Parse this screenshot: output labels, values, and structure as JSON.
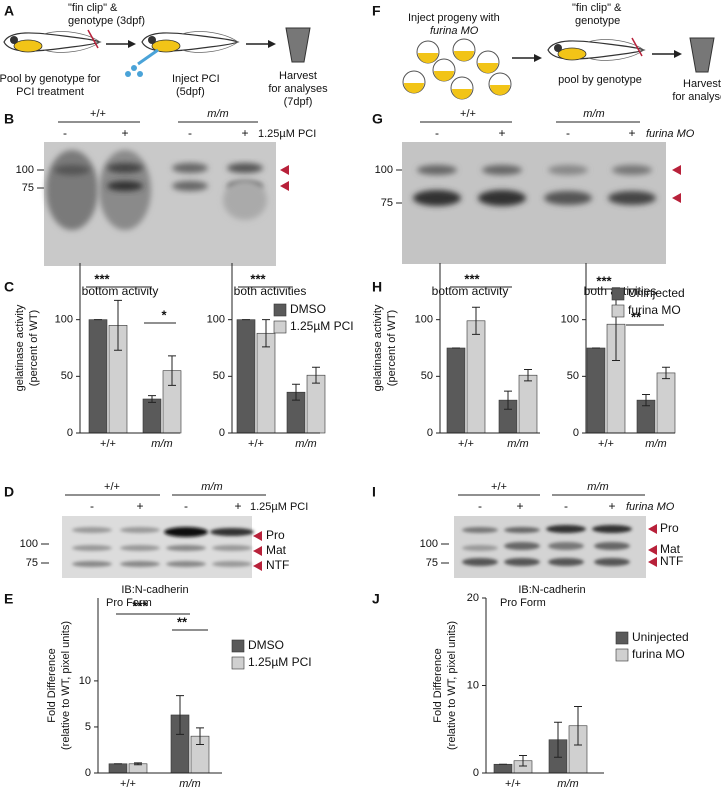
{
  "labels": [
    "A",
    "B",
    "C",
    "D",
    "E",
    "F",
    "G",
    "H",
    "I",
    "J"
  ],
  "schematic_a": {
    "clip": [
      "\"fin clip\" &",
      "genotype (3dpf)"
    ],
    "pool": [
      "Pool by genotype for",
      "PCI treatment"
    ],
    "inject": [
      "Inject PCI",
      "(5dpf)"
    ],
    "harvest": [
      "Harvest",
      "for analyses",
      "(7dpf)"
    ]
  },
  "schematic_f": {
    "inject": [
      "Inject progeny with",
      "furina MO"
    ],
    "clip": [
      "\"fin clip\" &",
      "genotype"
    ],
    "pool": "pool by genotype",
    "harvest": [
      "Harvest",
      "for analyses"
    ]
  },
  "blot_b": {
    "genotypes": [
      "+/+",
      "m/m"
    ],
    "signs": [
      "-",
      "+",
      "-",
      "+"
    ],
    "treatment": "1.25µM PCI",
    "markers": [
      "100",
      "75"
    ]
  },
  "blot_g": {
    "genotypes": [
      "+/+",
      "m/m"
    ],
    "signs": [
      "-",
      "+",
      "-",
      "+"
    ],
    "treatment": "furina MO",
    "markers": [
      "100",
      "75"
    ]
  },
  "blot_d": {
    "genotypes": [
      "+/+",
      "m/m"
    ],
    "signs": [
      "-",
      "+",
      "-",
      "+"
    ],
    "treatment": "1.25µM PCI",
    "markers": [
      "100",
      "75"
    ],
    "bands": [
      "Pro",
      "Mat",
      "NTF"
    ],
    "antibody": "IB:N-cadherin"
  },
  "blot_i": {
    "genotypes": [
      "+/+",
      "m/m"
    ],
    "signs": [
      "-",
      "+",
      "-",
      "+"
    ],
    "treatment": "furina MO",
    "markers": [
      "100",
      "75"
    ],
    "bands": [
      "Pro",
      "Mat",
      "NTF"
    ],
    "antibody": "IB:N-cadherin"
  },
  "chart_data": [
    {
      "type": "bar",
      "title": "bottom activity",
      "ylabel": [
        "gelatinase activity",
        "(percent of WT)"
      ],
      "categories": [
        "+/+",
        "m/m"
      ],
      "series": [
        {
          "color": "#5a5a5a",
          "values": [
            100,
            30
          ],
          "errors": [
            0,
            3
          ]
        },
        {
          "color": "#d0d0d0",
          "values": [
            95,
            55
          ],
          "errors": [
            22,
            13
          ]
        }
      ],
      "ylim": [
        0,
        150
      ],
      "yticks": [
        0,
        50,
        100
      ],
      "annotations": [
        "***",
        "*"
      ]
    },
    {
      "type": "bar",
      "title": "both activities",
      "categories": [
        "+/+",
        "m/m"
      ],
      "series": [
        {
          "name": "DMSO",
          "color": "#5a5a5a",
          "values": [
            100,
            36
          ],
          "errors": [
            0,
            7
          ]
        },
        {
          "name": "1.25µM PCI",
          "color": "#d0d0d0",
          "values": [
            88,
            51
          ],
          "errors": [
            12,
            7
          ]
        }
      ],
      "ylim": [
        0,
        150
      ],
      "yticks": [
        0,
        50,
        100
      ],
      "annotations": [
        "***"
      ]
    },
    {
      "type": "bar",
      "title": "bottom activity",
      "ylabel": [
        "gelatinase activity",
        "(percent of WT)"
      ],
      "categories": [
        "+/+",
        "m/m"
      ],
      "series": [
        {
          "color": "#5a5a5a",
          "values": [
            75,
            29
          ],
          "errors": [
            0,
            8
          ]
        },
        {
          "color": "#d0d0d0",
          "values": [
            99,
            51
          ],
          "errors": [
            12,
            5
          ]
        }
      ],
      "ylim": [
        0,
        150
      ],
      "yticks": [
        0,
        50,
        100
      ],
      "annotations": [
        "***"
      ]
    },
    {
      "type": "bar",
      "title": "both activities",
      "categories": [
        "+/+",
        "m/m"
      ],
      "series": [
        {
          "name": "Uninjected",
          "color": "#5a5a5a",
          "values": [
            75,
            29
          ],
          "errors": [
            0,
            5
          ]
        },
        {
          "name": "furina MO",
          "color": "#d0d0d0",
          "values": [
            96,
            53
          ],
          "errors": [
            32,
            5
          ]
        }
      ],
      "ylim": [
        0,
        150
      ],
      "yticks": [
        0,
        50,
        100
      ],
      "annotations": [
        "***",
        "**"
      ]
    },
    {
      "type": "bar",
      "title": "Pro Form",
      "ylabel": [
        "Fold Difference",
        "(relative to WT, pixel units)"
      ],
      "categories": [
        "+/+",
        "m/m"
      ],
      "series": [
        {
          "name": "DMSO",
          "color": "#5a5a5a",
          "values": [
            1,
            6.3
          ],
          "errors": [
            0,
            2.1
          ]
        },
        {
          "name": "1.25µM PCI",
          "color": "#d0d0d0",
          "values": [
            1,
            4
          ],
          "errors": [
            0.1,
            0.9
          ]
        }
      ],
      "ylim": [
        0,
        19
      ],
      "yticks": [
        0,
        5,
        10
      ],
      "annotations": [
        "***",
        "**"
      ]
    },
    {
      "type": "bar",
      "title": "Pro Form",
      "ylabel": [
        "Fold Difference",
        "(relative to WT, pixel units)"
      ],
      "categories": [
        "+/+",
        "m/m"
      ],
      "series": [
        {
          "name": "Uninjected",
          "color": "#5a5a5a",
          "values": [
            1,
            3.8
          ],
          "errors": [
            0,
            2
          ]
        },
        {
          "name": "furina MO",
          "color": "#d0d0d0",
          "values": [
            1.4,
            5.4
          ],
          "errors": [
            0.6,
            2.2
          ]
        }
      ],
      "ylim": [
        0,
        20
      ],
      "yticks": [
        0,
        10,
        20
      ]
    }
  ]
}
